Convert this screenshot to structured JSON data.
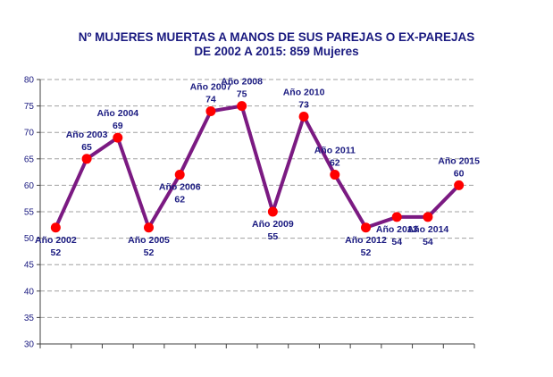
{
  "chart_data": {
    "type": "line",
    "title": "Nº MUJERES MUERTAS A MANOS DE SUS PAREJAS O EX-PAREJAS",
    "subtitle": "DE 2002 A 2015: 859 Mujeres",
    "xlabel": "",
    "ylabel": "",
    "ylim": [
      30,
      80
    ],
    "yticks": [
      30,
      35,
      40,
      45,
      50,
      55,
      60,
      65,
      70,
      75,
      80
    ],
    "grid": true,
    "legend": "none",
    "categories": [
      "Año 2002",
      "Año 2003",
      "Año 2004",
      "Año 2005",
      "Año 2006",
      "Año 2007",
      "Año 2008",
      "Año 2009",
      "Año 2010",
      "Año 2011",
      "Año 2012",
      "Año 2013",
      "Año 2014",
      "Año 2015"
    ],
    "values": [
      52,
      65,
      69,
      52,
      62,
      74,
      75,
      55,
      73,
      62,
      52,
      54,
      54,
      60
    ],
    "label_positions": [
      "below",
      "above",
      "above",
      "below",
      "below",
      "above",
      "above",
      "below",
      "above",
      "above",
      "below",
      "below",
      "below",
      "above"
    ],
    "colors": {
      "line": "#7b1a82",
      "marker": "#ff0000",
      "text": "#1a1a80",
      "grid": "#a0a0a0",
      "axis": "#404040"
    }
  }
}
